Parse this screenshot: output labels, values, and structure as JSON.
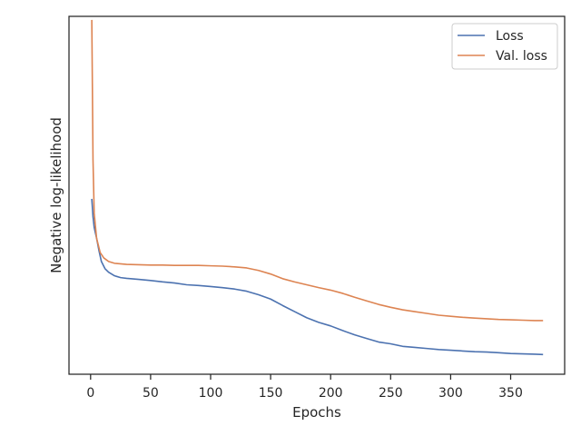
{
  "chart_data": {
    "type": "line",
    "title": "",
    "xlabel": "Epochs",
    "ylabel": "Negative log-likelihood",
    "xlim": [
      -18,
      395
    ],
    "ylim": [
      0.0,
      1.0
    ],
    "y_ticks_shown": false,
    "x_ticks": [
      0,
      50,
      100,
      150,
      200,
      250,
      300,
      350
    ],
    "x_tick_labels": [
      "0",
      "50",
      "100",
      "150",
      "200",
      "250",
      "300",
      "350"
    ],
    "grid": false,
    "legend_position": "top-right",
    "series": [
      {
        "name": "Loss",
        "color": "#4c72b0",
        "points": [
          [
            1,
            0.49
          ],
          [
            2,
            0.44
          ],
          [
            3,
            0.41
          ],
          [
            5,
            0.38
          ],
          [
            7,
            0.345
          ],
          [
            9,
            0.315
          ],
          [
            12,
            0.295
          ],
          [
            15,
            0.285
          ],
          [
            20,
            0.275
          ],
          [
            25,
            0.27
          ],
          [
            30,
            0.268
          ],
          [
            40,
            0.265
          ],
          [
            50,
            0.262
          ],
          [
            60,
            0.258
          ],
          [
            70,
            0.255
          ],
          [
            80,
            0.25
          ],
          [
            90,
            0.248
          ],
          [
            100,
            0.245
          ],
          [
            110,
            0.242
          ],
          [
            120,
            0.238
          ],
          [
            130,
            0.232
          ],
          [
            140,
            0.222
          ],
          [
            150,
            0.21
          ],
          [
            160,
            0.192
          ],
          [
            170,
            0.175
          ],
          [
            180,
            0.158
          ],
          [
            190,
            0.145
          ],
          [
            200,
            0.135
          ],
          [
            210,
            0.122
          ],
          [
            220,
            0.11
          ],
          [
            230,
            0.1
          ],
          [
            240,
            0.09
          ],
          [
            250,
            0.085
          ],
          [
            260,
            0.078
          ],
          [
            270,
            0.075
          ],
          [
            280,
            0.072
          ],
          [
            290,
            0.069
          ],
          [
            300,
            0.067
          ],
          [
            310,
            0.065
          ],
          [
            320,
            0.063
          ],
          [
            330,
            0.062
          ],
          [
            340,
            0.06
          ],
          [
            350,
            0.058
          ],
          [
            360,
            0.057
          ],
          [
            370,
            0.056
          ],
          [
            377,
            0.055
          ]
        ]
      },
      {
        "name": "Val. loss",
        "color": "#dd8452",
        "points": [
          [
            1,
            0.99
          ],
          [
            1.5,
            0.8
          ],
          [
            2,
            0.6
          ],
          [
            3,
            0.45
          ],
          [
            5,
            0.38
          ],
          [
            8,
            0.34
          ],
          [
            11,
            0.325
          ],
          [
            15,
            0.315
          ],
          [
            20,
            0.31
          ],
          [
            30,
            0.307
          ],
          [
            40,
            0.306
          ],
          [
            50,
            0.305
          ],
          [
            60,
            0.305
          ],
          [
            70,
            0.304
          ],
          [
            80,
            0.304
          ],
          [
            90,
            0.304
          ],
          [
            100,
            0.303
          ],
          [
            110,
            0.302
          ],
          [
            120,
            0.3
          ],
          [
            130,
            0.297
          ],
          [
            140,
            0.29
          ],
          [
            150,
            0.28
          ],
          [
            160,
            0.267
          ],
          [
            170,
            0.258
          ],
          [
            180,
            0.25
          ],
          [
            190,
            0.242
          ],
          [
            200,
            0.235
          ],
          [
            210,
            0.226
          ],
          [
            220,
            0.215
          ],
          [
            230,
            0.205
          ],
          [
            240,
            0.195
          ],
          [
            250,
            0.187
          ],
          [
            260,
            0.18
          ],
          [
            270,
            0.175
          ],
          [
            280,
            0.17
          ],
          [
            290,
            0.165
          ],
          [
            300,
            0.162
          ],
          [
            310,
            0.159
          ],
          [
            320,
            0.157
          ],
          [
            330,
            0.155
          ],
          [
            340,
            0.153
          ],
          [
            350,
            0.152
          ],
          [
            360,
            0.151
          ],
          [
            370,
            0.15
          ],
          [
            377,
            0.15
          ]
        ]
      }
    ]
  }
}
